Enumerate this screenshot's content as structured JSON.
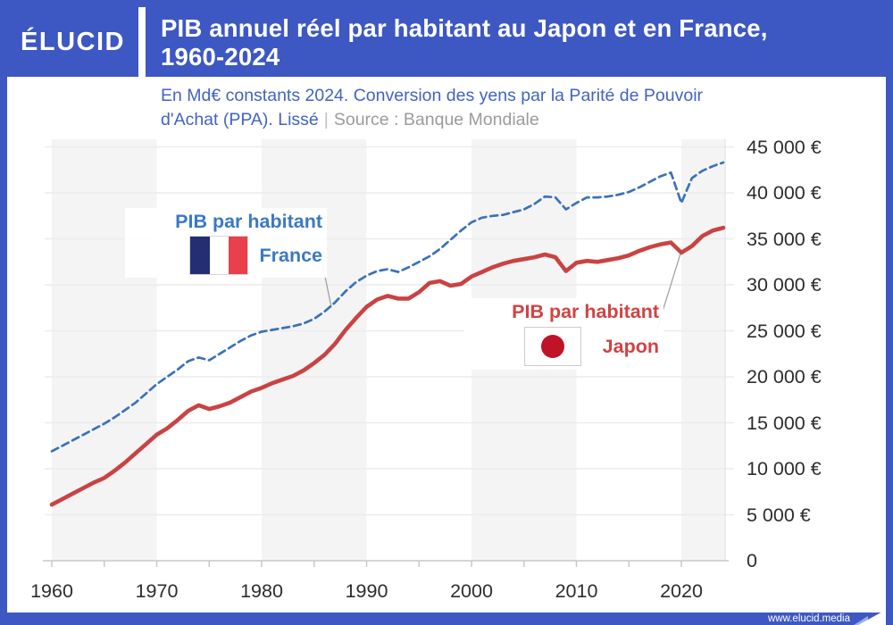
{
  "header": {
    "logo": "ÉLUCID",
    "title_line1": "PIB annuel réel par habitant au Japon et en France,",
    "title_line2": "1960-2024"
  },
  "subtitle": {
    "line1": "En Md€ constants 2024. Conversion des yens par la Parité de Pouvoir",
    "line2": "d'Achat (PPA). Lissé",
    "separator": "|",
    "source": "Source : Banque Mondiale"
  },
  "annotations": {
    "france": {
      "line1": "PIB par habitant",
      "line2": "France"
    },
    "japan": {
      "line1": "PIB par habitant",
      "line2": "Japon"
    }
  },
  "footer": {
    "url": "www.elucid.media"
  },
  "colors": {
    "frame_blue": "#3d58c2",
    "band_gray": "#f4f4f5",
    "gridline": "#ececec",
    "axis": "#c9c9c9",
    "plot_right_border": "#e3e3e3",
    "leader": "#9a9a9a",
    "france_line": "#3b72b8",
    "japan_line": "#c94343"
  },
  "chart_data": {
    "type": "line",
    "title": "PIB annuel réel par habitant au Japon et en France, 1960-2024",
    "unit_note": "En Md€ constants 2024. Conversion des yens par la Parité de Pouvoir d'Achat (PPA). Lissé",
    "source": "Banque Mondiale",
    "ylim": [
      0,
      45000
    ],
    "xlim": [
      1960,
      2024.3
    ],
    "grid": true,
    "legend_position": "inline-annotations",
    "years": [
      1960,
      1961,
      1962,
      1963,
      1964,
      1965,
      1966,
      1967,
      1968,
      1969,
      1970,
      1971,
      1972,
      1973,
      1974,
      1975,
      1976,
      1977,
      1978,
      1979,
      1980,
      1981,
      1982,
      1983,
      1984,
      1985,
      1986,
      1987,
      1988,
      1989,
      1990,
      1991,
      1992,
      1993,
      1994,
      1995,
      1996,
      1997,
      1998,
      1999,
      2000,
      2001,
      2002,
      2003,
      2004,
      2005,
      2006,
      2007,
      2008,
      2009,
      2010,
      2011,
      2012,
      2013,
      2014,
      2015,
      2016,
      2017,
      2018,
      2019,
      2020,
      2021,
      2022,
      2023,
      2024
    ],
    "series": [
      {
        "name": "PIB par habitant France",
        "color": "#3b72b8",
        "style": "dashed",
        "values": [
          11900,
          12500,
          13100,
          13700,
          14300,
          14900,
          15600,
          16400,
          17200,
          18200,
          19200,
          20000,
          20800,
          21700,
          22100,
          21800,
          22500,
          23200,
          23900,
          24500,
          24900,
          25100,
          25300,
          25500,
          25800,
          26300,
          27100,
          28100,
          29300,
          30300,
          31000,
          31500,
          31700,
          31400,
          31900,
          32500,
          33100,
          33900,
          34900,
          35900,
          36800,
          37300,
          37500,
          37600,
          37900,
          38200,
          38800,
          39600,
          39500,
          38200,
          38900,
          39500,
          39500,
          39600,
          39800,
          40100,
          40600,
          41200,
          41800,
          42200,
          38900,
          41600,
          42400,
          42900,
          43300
        ]
      },
      {
        "name": "PIB par habitant Japon",
        "color": "#c94343",
        "style": "solid",
        "values": [
          6100,
          6700,
          7300,
          7900,
          8500,
          9000,
          9800,
          10700,
          11700,
          12700,
          13700,
          14400,
          15300,
          16300,
          16900,
          16500,
          16800,
          17200,
          17800,
          18400,
          18800,
          19300,
          19700,
          20100,
          20700,
          21500,
          22400,
          23600,
          25100,
          26400,
          27600,
          28400,
          28800,
          28500,
          28500,
          29200,
          30200,
          30400,
          29900,
          30100,
          30900,
          31400,
          31900,
          32300,
          32600,
          32800,
          33000,
          33300,
          33000,
          31500,
          32400,
          32600,
          32500,
          32700,
          32900,
          33200,
          33700,
          34100,
          34400,
          34600,
          33500,
          34200,
          35300,
          35900,
          36200
        ]
      }
    ],
    "y_ticks": [
      {
        "value": 45000,
        "label": "45 000 €"
      },
      {
        "value": 40000,
        "label": "40 000 €"
      },
      {
        "value": 35000,
        "label": "35 000 €"
      },
      {
        "value": 30000,
        "label": "30 000 €"
      },
      {
        "value": 25000,
        "label": "25 000 €"
      },
      {
        "value": 20000,
        "label": "20 000 €"
      },
      {
        "value": 15000,
        "label": "15 000 €"
      },
      {
        "value": 10000,
        "label": "10 000 €"
      },
      {
        "value": 5000,
        "label": "5 000 €"
      },
      {
        "value": 0,
        "label": "0"
      }
    ],
    "x_tick_labels": [
      1960,
      1970,
      1980,
      1990,
      2000,
      2010,
      2020
    ],
    "x_minor_tick_step": 5,
    "shaded_periods": [
      [
        1960,
        1970
      ],
      [
        1980,
        1990
      ],
      [
        2000,
        2010
      ],
      [
        2020,
        2024.3
      ]
    ]
  }
}
